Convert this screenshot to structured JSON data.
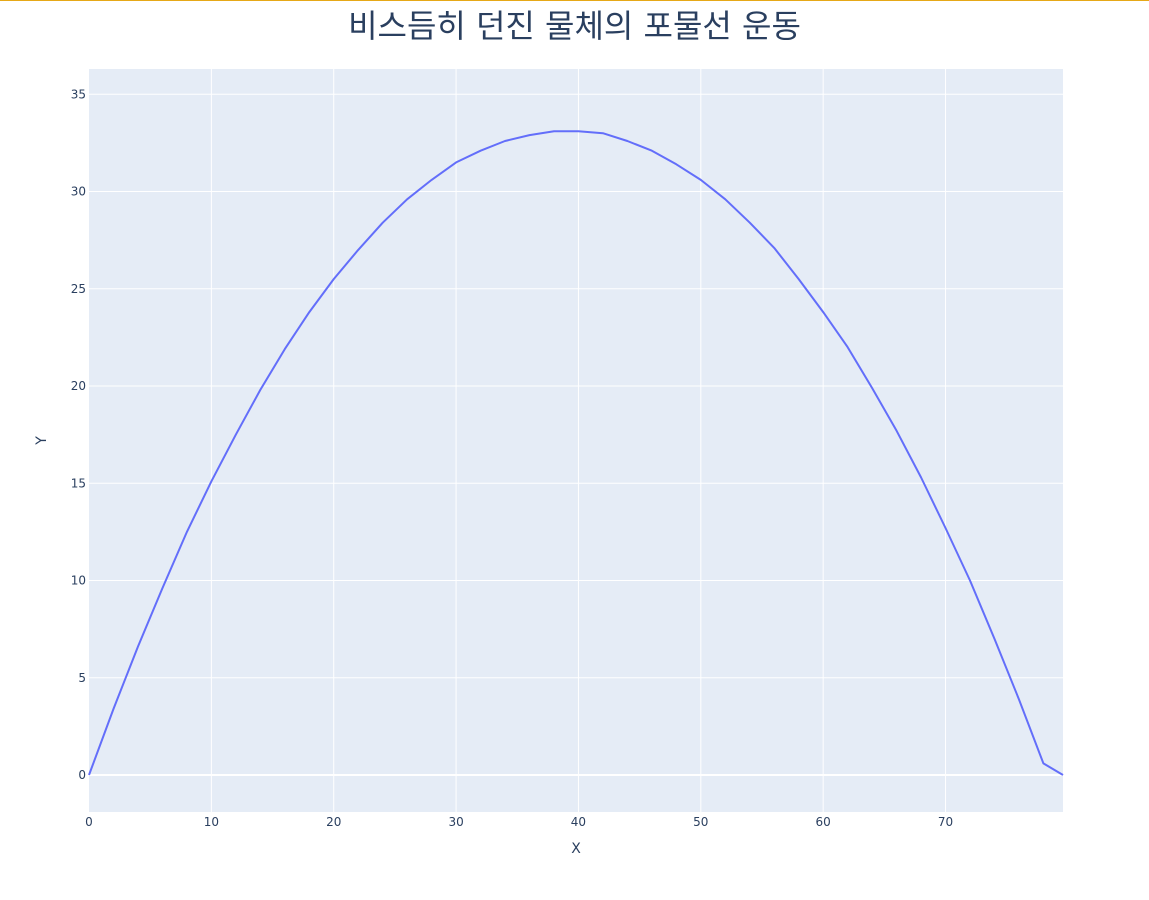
{
  "chart_data": {
    "type": "line",
    "title": "비스듬히 던진 물체의 포물선 운동",
    "xlabel": "X",
    "ylabel": "Y",
    "xlim": [
      0,
      79.6
    ],
    "ylim": [
      -1.9,
      36.3
    ],
    "xticks": [
      0,
      10,
      20,
      30,
      40,
      50,
      60,
      70
    ],
    "yticks": [
      0,
      5,
      10,
      15,
      20,
      25,
      30,
      35
    ],
    "grid": true,
    "colors": {
      "plot_background": "#e5ecf6",
      "grid": "#ffffff",
      "line": "#636efa",
      "text": "#2a3f5f"
    },
    "series": [
      {
        "x": [
          0,
          2,
          4,
          6,
          8,
          10,
          12,
          14,
          16,
          18,
          20,
          22,
          24,
          26,
          28,
          30,
          32,
          34,
          36,
          38,
          40,
          42,
          44,
          46,
          48,
          50,
          52,
          54,
          56,
          58,
          60,
          62,
          64,
          66,
          68,
          70,
          72,
          74,
          76,
          78,
          79.6
        ],
        "y": [
          0,
          3.4,
          6.6,
          9.6,
          12.5,
          15.1,
          17.5,
          19.8,
          21.9,
          23.8,
          25.5,
          27.0,
          28.4,
          29.6,
          30.6,
          31.5,
          32.1,
          32.6,
          32.9,
          33.1,
          33.1,
          33.0,
          32.6,
          32.1,
          31.4,
          30.6,
          29.6,
          28.4,
          27.1,
          25.5,
          23.8,
          22.0,
          19.9,
          17.7,
          15.3,
          12.7,
          10.0,
          7.0,
          3.9,
          0.6,
          0
        ]
      }
    ]
  }
}
